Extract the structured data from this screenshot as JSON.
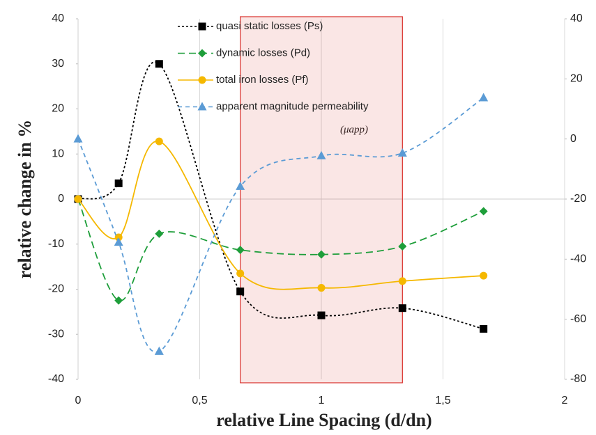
{
  "chart_data": {
    "type": "line",
    "x": [
      0,
      0.1667,
      0.3333,
      0.6667,
      1,
      1.3333,
      1.6667
    ],
    "series": [
      {
        "name": "quasi static losses (Ps)",
        "color": "#000000",
        "marker": "square",
        "dash": "3,3",
        "values": [
          0,
          3.5,
          30,
          -20.5,
          -25.8,
          -24.2,
          -28.8
        ]
      },
      {
        "name": "dynamic losses (Pd)",
        "color": "#1e9e3a",
        "marker": "diamond",
        "dash": "10,6",
        "values": [
          0,
          -22.5,
          -7.7,
          -11.3,
          -12.3,
          -10.5,
          -2.7
        ]
      },
      {
        "name": "total iron losses (Pf)",
        "color": "#f5b800",
        "marker": "circle",
        "dash": "none",
        "values": [
          0,
          -8.5,
          12.8,
          -16.5,
          -19.7,
          -18.2,
          -17
        ]
      },
      {
        "name": "apparent magnitude permeability",
        "color": "#5b9bd5",
        "marker": "triangle",
        "dash": "6,5",
        "axis": "y2",
        "values": [
          0,
          -34.4,
          -70.7,
          -15.8,
          -5.6,
          -4.7,
          13.7
        ]
      }
    ],
    "annotations": [
      "(μapp)"
    ],
    "xlabel": "relative Line Spacing (d/dn)",
    "ylabel": "relative change in %",
    "xlim": [
      0,
      2
    ],
    "xticks": [
      0,
      {
        "value": 0.5,
        "label": "0,5"
      },
      1,
      {
        "value": 1.5,
        "label": "1,5"
      },
      2
    ],
    "ylim": [
      -40,
      40
    ],
    "yticks": [
      -40,
      -30,
      -20,
      -10,
      0,
      10,
      20,
      30,
      40
    ],
    "y2lim": [
      -80,
      40
    ],
    "y2ticks": [
      -80,
      -60,
      -40,
      -20,
      0,
      20,
      40
    ],
    "grid": "x",
    "highlight": {
      "x": [
        0.6667,
        1.3333
      ],
      "color": "#d9302b"
    }
  }
}
